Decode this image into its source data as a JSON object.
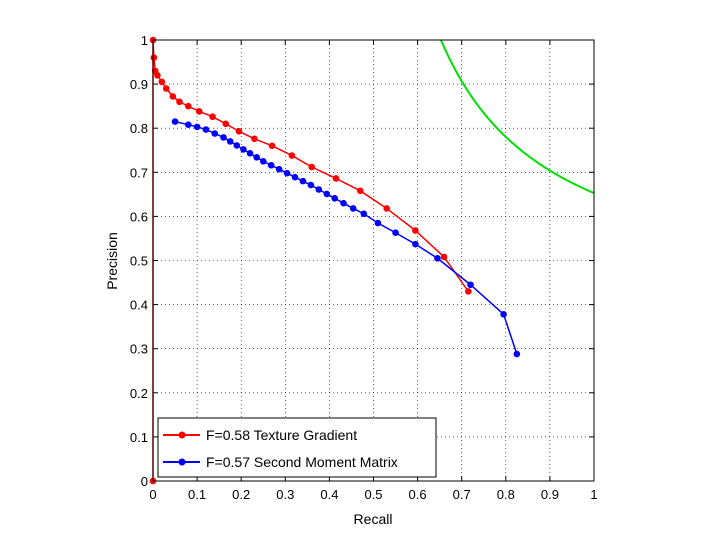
{
  "chart_data": {
    "type": "line",
    "xlabel": "Recall",
    "ylabel": "Precision",
    "xlim": [
      0,
      1
    ],
    "ylim": [
      0,
      1
    ],
    "xticks": [
      "0",
      "0.1",
      "0.2",
      "0.3",
      "0.4",
      "0.5",
      "0.6",
      "0.7",
      "0.8",
      "0.9",
      "1"
    ],
    "yticks": [
      "0",
      "0.1",
      "0.2",
      "0.3",
      "0.4",
      "0.5",
      "0.6",
      "0.7",
      "0.8",
      "0.9",
      "1"
    ],
    "grid": true,
    "legend_position": "bottom-left",
    "series": [
      {
        "name": "F=0.58 Texture Gradient",
        "color": "#ff0000",
        "marker": "circle",
        "x": [
          0.0,
          0.0,
          0.002,
          0.005,
          0.01,
          0.02,
          0.03,
          0.045,
          0.06,
          0.08,
          0.105,
          0.135,
          0.165,
          0.195,
          0.23,
          0.27,
          0.315,
          0.36,
          0.415,
          0.47,
          0.53,
          0.595,
          0.66,
          0.715
        ],
        "y": [
          0.0,
          1.0,
          0.96,
          0.93,
          0.92,
          0.905,
          0.89,
          0.872,
          0.86,
          0.85,
          0.838,
          0.826,
          0.81,
          0.793,
          0.776,
          0.76,
          0.738,
          0.712,
          0.686,
          0.658,
          0.618,
          0.568,
          0.508,
          0.43
        ]
      },
      {
        "name": "F=0.57 Second Moment Matrix",
        "color": "#0000ff",
        "marker": "circle",
        "x": [
          0.05,
          0.08,
          0.1,
          0.12,
          0.14,
          0.16,
          0.175,
          0.19,
          0.205,
          0.22,
          0.235,
          0.25,
          0.268,
          0.286,
          0.304,
          0.322,
          0.34,
          0.358,
          0.376,
          0.394,
          0.412,
          0.432,
          0.454,
          0.478,
          0.51,
          0.55,
          0.595,
          0.645,
          0.72,
          0.795,
          0.825
        ],
        "y": [
          0.815,
          0.808,
          0.803,
          0.797,
          0.788,
          0.779,
          0.77,
          0.761,
          0.752,
          0.743,
          0.734,
          0.725,
          0.716,
          0.707,
          0.698,
          0.689,
          0.68,
          0.671,
          0.661,
          0.651,
          0.641,
          0.63,
          0.618,
          0.606,
          0.585,
          0.563,
          0.537,
          0.505,
          0.445,
          0.378,
          0.288
        ]
      }
    ],
    "iso_f_curve": {
      "color": "#00e000",
      "f": 0.79
    }
  }
}
